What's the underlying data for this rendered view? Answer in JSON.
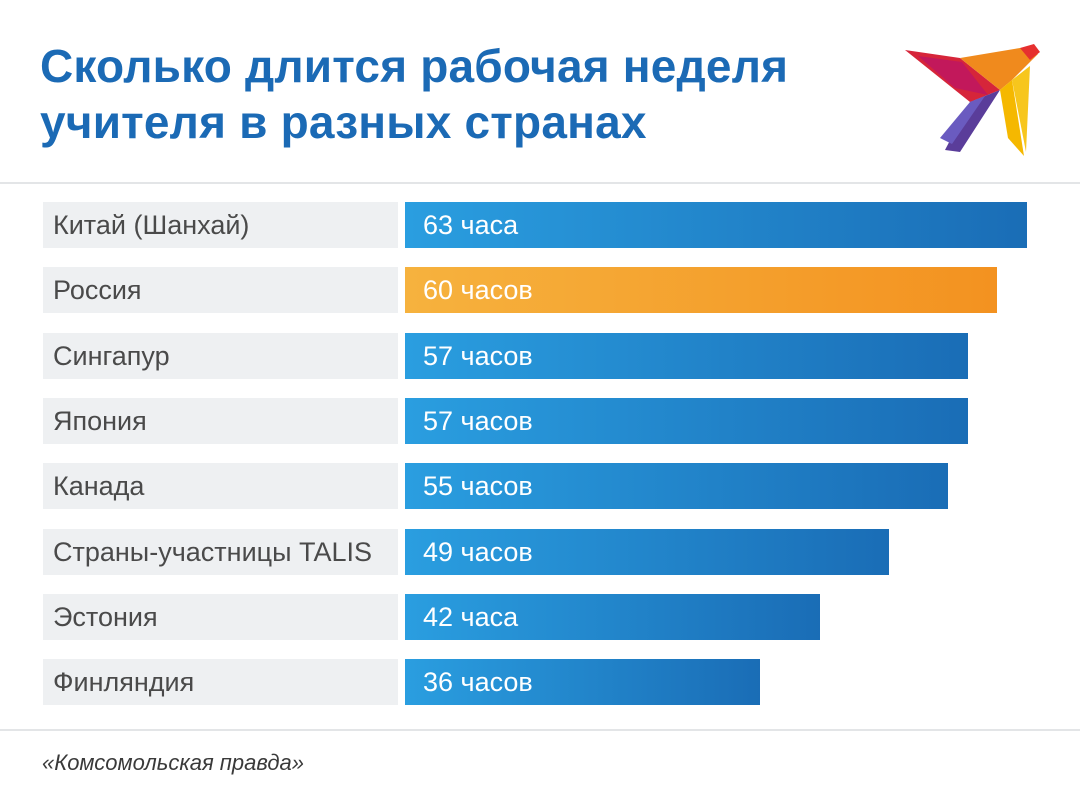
{
  "chart_data": {
    "type": "bar",
    "orientation": "horizontal",
    "title": "Сколько длится рабочая неделя учителя в разных странах",
    "title_lines": [
      "Сколько длится рабочая неделя",
      "учителя в разных странах"
    ],
    "categories": [
      "Китай (Шанхай)",
      "Россия",
      "Сингапур",
      "Япония",
      "Канада",
      "Страны-участницы TALIS",
      "Эстония",
      "Финляндия"
    ],
    "values": [
      63,
      60,
      57,
      57,
      55,
      49,
      42,
      36
    ],
    "value_labels": [
      "63 часа",
      "60 часов",
      "57 часов",
      "57 часов",
      "55 часов",
      "49 часов",
      "42 часа",
      "36 часов"
    ],
    "highlight_index": 1,
    "xlim": [
      0,
      63
    ],
    "xlabel": "",
    "ylabel": "",
    "grid": false,
    "legend": "none"
  },
  "colors": {
    "title": "#1b6ab5",
    "bar_start": "#2a9ee0",
    "bar_end": "#1a6db6",
    "highlight_start": "#f6b23e",
    "highlight_end": "#f39220",
    "label_bg": "#eef0f2"
  },
  "logo": {
    "icon": "swallow-bird-icon"
  },
  "source": "«Комсомольская правда»"
}
